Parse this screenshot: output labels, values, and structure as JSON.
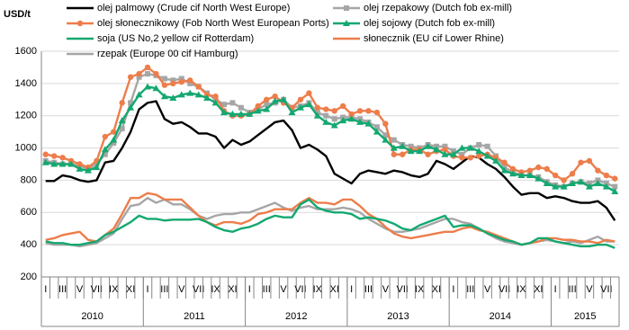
{
  "chart_data": {
    "type": "line",
    "y_label": "USD/t",
    "ylim": [
      200,
      1600
    ],
    "yticks": [
      200,
      400,
      600,
      800,
      1000,
      1200,
      1400,
      1600
    ],
    "categories": [
      "I",
      null,
      "III",
      null,
      "V",
      null,
      "VII",
      null,
      "IX",
      null,
      "XI",
      null,
      "I",
      null,
      "III",
      null,
      "V",
      null,
      "VII",
      null,
      "IX",
      null,
      "XI",
      null,
      "I",
      null,
      "III",
      null,
      "V",
      null,
      "VII",
      null,
      "IX",
      null,
      "XI",
      null,
      "I",
      null,
      "III",
      null,
      "V",
      null,
      "VII",
      null,
      "IX",
      null,
      "XI",
      null,
      "I",
      null,
      "III",
      null,
      "V",
      null,
      "VII",
      null,
      "IX",
      null,
      "XI",
      null,
      "I",
      null,
      "III",
      null,
      "V",
      null,
      "VII",
      null
    ],
    "years": [
      "2010",
      "2011",
      "2012",
      "2013",
      "2014",
      "2015"
    ],
    "series": [
      {
        "name": "olej palmowy  (Crude cif North West Europe)",
        "color": "#000000",
        "marker": "none",
        "values": [
          795,
          795,
          830,
          820,
          800,
          790,
          800,
          910,
          920,
          1000,
          1100,
          1240,
          1280,
          1290,
          1180,
          1150,
          1160,
          1130,
          1090,
          1090,
          1070,
          1000,
          1050,
          1020,
          1040,
          1080,
          1120,
          1160,
          1170,
          1110,
          1000,
          1020,
          990,
          950,
          840,
          810,
          780,
          840,
          860,
          850,
          840,
          860,
          850,
          830,
          820,
          840,
          920,
          900,
          870,
          910,
          950,
          940,
          900,
          870,
          820,
          760,
          710,
          720,
          720,
          690,
          700,
          690,
          670,
          660,
          660,
          670,
          630,
          550
        ]
      },
      {
        "name": "olej rzepakowy  (Dutch fob ex-mill)",
        "color": "#a6a6a6",
        "marker": "square",
        "values": [
          920,
          910,
          900,
          900,
          890,
          870,
          900,
          960,
          1030,
          1120,
          1280,
          1440,
          1460,
          1450,
          1430,
          1420,
          1430,
          1400,
          1380,
          1340,
          1300,
          1270,
          1280,
          1250,
          1220,
          1240,
          1270,
          1280,
          1300,
          1250,
          1260,
          1280,
          1220,
          1200,
          1180,
          1190,
          1190,
          1180,
          1160,
          1130,
          1080,
          1050,
          1020,
          1010,
          1000,
          1020,
          1010,
          1010,
          980,
          960,
          1000,
          1020,
          1010,
          950,
          880,
          850,
          830,
          830,
          820,
          790,
          770,
          760,
          780,
          790,
          780,
          800,
          780,
          760
        ]
      },
      {
        "name": "olej słonecznikowy  (Fob North West European Ports)",
        "color": "#ed7d4b",
        "marker": "circle",
        "values": [
          960,
          950,
          940,
          920,
          900,
          880,
          920,
          1070,
          1100,
          1280,
          1440,
          1460,
          1500,
          1460,
          1390,
          1400,
          1410,
          1420,
          1380,
          1330,
          1320,
          1230,
          1200,
          1200,
          1210,
          1260,
          1300,
          1320,
          1280,
          1250,
          1300,
          1340,
          1250,
          1240,
          1230,
          1260,
          1210,
          1230,
          1230,
          1220,
          1150,
          960,
          960,
          990,
          990,
          960,
          980,
          990,
          950,
          940,
          940,
          950,
          960,
          940,
          910,
          870,
          850,
          860,
          880,
          870,
          830,
          800,
          840,
          910,
          920,
          860,
          830,
          810
        ]
      },
      {
        "name": "olej sojowy  (Dutch fob ex-mill)",
        "color": "#14a870",
        "marker": "triangle",
        "values": [
          910,
          900,
          900,
          900,
          870,
          860,
          880,
          990,
          1050,
          1170,
          1250,
          1330,
          1380,
          1370,
          1320,
          1310,
          1330,
          1340,
          1330,
          1310,
          1280,
          1220,
          1210,
          1210,
          1210,
          1230,
          1240,
          1290,
          1300,
          1220,
          1250,
          1270,
          1200,
          1160,
          1140,
          1170,
          1180,
          1160,
          1150,
          1100,
          1050,
          1000,
          1010,
          980,
          980,
          1010,
          990,
          960,
          960,
          1000,
          1000,
          980,
          950,
          920,
          860,
          840,
          830,
          830,
          810,
          780,
          760,
          760,
          780,
          790,
          760,
          780,
          760,
          730
        ]
      },
      {
        "name": "soja (US No,2 yellow cif Rotterdam)",
        "color": "#14a870",
        "marker": "none",
        "values": [
          420,
          410,
          410,
          400,
          400,
          410,
          420,
          460,
          480,
          510,
          540,
          580,
          560,
          560,
          550,
          555,
          555,
          555,
          560,
          540,
          510,
          490,
          480,
          500,
          510,
          530,
          560,
          580,
          570,
          570,
          650,
          680,
          630,
          610,
          600,
          600,
          590,
          560,
          570,
          560,
          550,
          530,
          500,
          490,
          520,
          540,
          560,
          580,
          510,
          520,
          520,
          500,
          470,
          450,
          430,
          420,
          400,
          410,
          440,
          440,
          420,
          410,
          400,
          390,
          390,
          400,
          400,
          380
        ]
      },
      {
        "name": "słonecznik (EU cif Lower Rhine)",
        "color": "#ed7d4b",
        "marker": "none",
        "values": [
          430,
          440,
          460,
          470,
          480,
          430,
          420,
          460,
          500,
          590,
          690,
          690,
          720,
          710,
          680,
          680,
          680,
          630,
          580,
          540,
          520,
          540,
          540,
          530,
          550,
          590,
          600,
          620,
          620,
          620,
          660,
          690,
          660,
          660,
          650,
          680,
          680,
          640,
          590,
          560,
          510,
          470,
          450,
          440,
          450,
          460,
          470,
          480,
          480,
          500,
          510,
          490,
          480,
          460,
          440,
          420,
          400,
          410,
          420,
          440,
          440,
          430,
          430,
          420,
          420,
          410,
          430,
          420
        ]
      },
      {
        "name": "rzepak (Europe 00 cif Hamburg)",
        "color": "#a6a6a6",
        "marker": "none",
        "values": [
          410,
          400,
          400,
          400,
          390,
          400,
          410,
          440,
          470,
          560,
          640,
          650,
          690,
          660,
          680,
          650,
          650,
          620,
          580,
          560,
          580,
          590,
          590,
          600,
          600,
          620,
          640,
          660,
          630,
          610,
          630,
          640,
          620,
          620,
          620,
          630,
          620,
          600,
          560,
          530,
          500,
          480,
          480,
          490,
          500,
          520,
          540,
          560,
          560,
          540,
          530,
          500,
          470,
          440,
          420,
          410,
          400,
          410,
          420,
          430,
          420,
          410,
          420,
          410,
          430,
          450,
          420,
          420
        ]
      }
    ]
  }
}
